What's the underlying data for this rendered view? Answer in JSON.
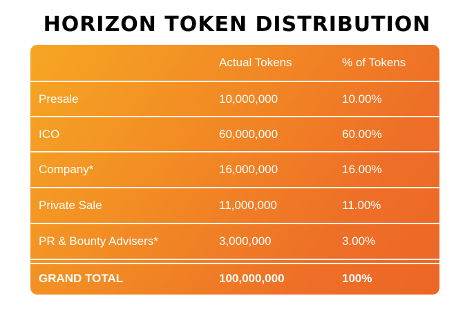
{
  "title": "HORIZON TOKEN DISTRIBUTION",
  "table": {
    "columns": [
      "",
      "Actual Tokens",
      "% of Tokens"
    ],
    "rows": [
      {
        "label": "Presale",
        "tokens": "10,000,000",
        "percent": "10.00%"
      },
      {
        "label": "ICO",
        "tokens": "60,000,000",
        "percent": "60.00%"
      },
      {
        "label": "Company*",
        "tokens": "16,000,000",
        "percent": "16.00%"
      },
      {
        "label": "Private Sale",
        "tokens": "11,000,000",
        "percent": "11.00%"
      },
      {
        "label": "PR & Bounty Advisers*",
        "tokens": "3,000,000",
        "percent": "3.00%"
      }
    ],
    "total": {
      "label": "GRAND TOTAL",
      "tokens": "100,000,000",
      "percent": "100%"
    }
  },
  "colors": {
    "gradient_start": "#f6a623",
    "gradient_end": "#ec6626",
    "text": "#ffffff",
    "title": "#000000"
  },
  "chart_data": {
    "type": "table",
    "title": "HORIZON TOKEN DISTRIBUTION",
    "columns": [
      "",
      "Actual Tokens",
      "% of Tokens"
    ],
    "categories": [
      "Presale",
      "ICO",
      "Company*",
      "Private Sale",
      "PR & Bounty Advisers*"
    ],
    "series": [
      {
        "name": "Actual Tokens",
        "values": [
          10000000,
          60000000,
          16000000,
          11000000,
          3000000
        ]
      },
      {
        "name": "% of Tokens",
        "values": [
          10.0,
          60.0,
          16.0,
          11.0,
          3.0
        ]
      }
    ],
    "total": {
      "label": "GRAND TOTAL",
      "tokens": 100000000,
      "percent": 100
    }
  }
}
